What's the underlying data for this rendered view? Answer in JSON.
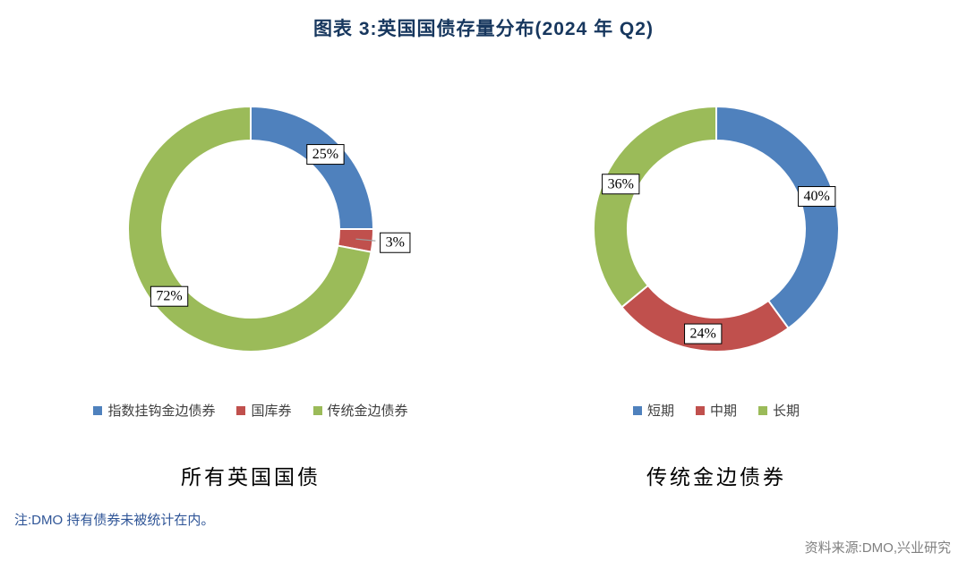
{
  "title": "图表 3:英国国债存量分布(2024 年 Q2)",
  "note": "注:DMO 持有债券未被统计在内。",
  "source": "资料来源:DMO,兴业研究",
  "colors": {
    "series_blue": "#4f81bd",
    "series_red": "#c0504d",
    "series_green": "#9bbb59",
    "title_text": "#17375e",
    "note_text": "#2f5597",
    "source_text": "#808080"
  },
  "chart_data": [
    {
      "type": "pie",
      "subtype": "donut",
      "title": "所有英国国债",
      "categories": [
        "指数挂钩金边债券",
        "国库券",
        "传统金边债券"
      ],
      "values": [
        25,
        3,
        72
      ],
      "value_labels": [
        "25%",
        "3%",
        "72%"
      ],
      "colors": [
        "#4f81bd",
        "#c0504d",
        "#9bbb59"
      ],
      "start_angle_deg": 0,
      "direction": "clockwise",
      "legend_position": "bottom"
    },
    {
      "type": "pie",
      "subtype": "donut",
      "title": "传统金边债券",
      "categories": [
        "短期",
        "中期",
        "长期"
      ],
      "values": [
        40,
        24,
        36
      ],
      "value_labels": [
        "40%",
        "24%",
        "36%"
      ],
      "colors": [
        "#4f81bd",
        "#c0504d",
        "#9bbb59"
      ],
      "start_angle_deg": 0,
      "direction": "clockwise",
      "legend_position": "bottom"
    }
  ]
}
